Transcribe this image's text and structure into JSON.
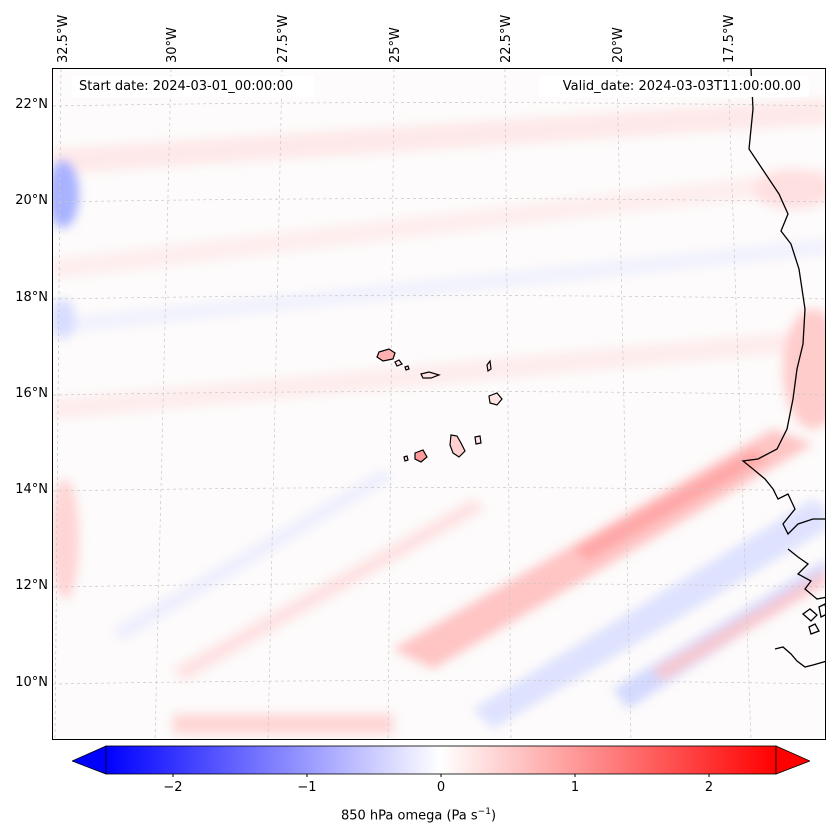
{
  "map": {
    "start_date": "Start date: 2024-03-01_00:00:00",
    "valid_date": "Valid_date: 2024-03-03T11:00:00.00",
    "lon_labels": [
      "32.5°W",
      "30°W",
      "27.5°W",
      "25°W",
      "22.5°W",
      "20°W",
      "17.5°W"
    ],
    "lat_labels": [
      "22°N",
      "20°N",
      "18°N",
      "16°N",
      "14°N",
      "12°N",
      "10°N"
    ],
    "colors": {
      "neg_max": "#0000ff",
      "neutral": "#ffffff",
      "pos_max": "#ff0000",
      "coastline": "#000000",
      "grid": "#bbbbbb"
    }
  },
  "colorbar": {
    "ticks": [
      "−2",
      "−1",
      "0",
      "1",
      "2"
    ],
    "tick_values": [
      -2,
      -1,
      0,
      1,
      2
    ],
    "range": [
      -2.5,
      2.5
    ],
    "label": "850 hPa omega (Pa s",
    "label_exp": "−1",
    "label_end": ")"
  }
}
